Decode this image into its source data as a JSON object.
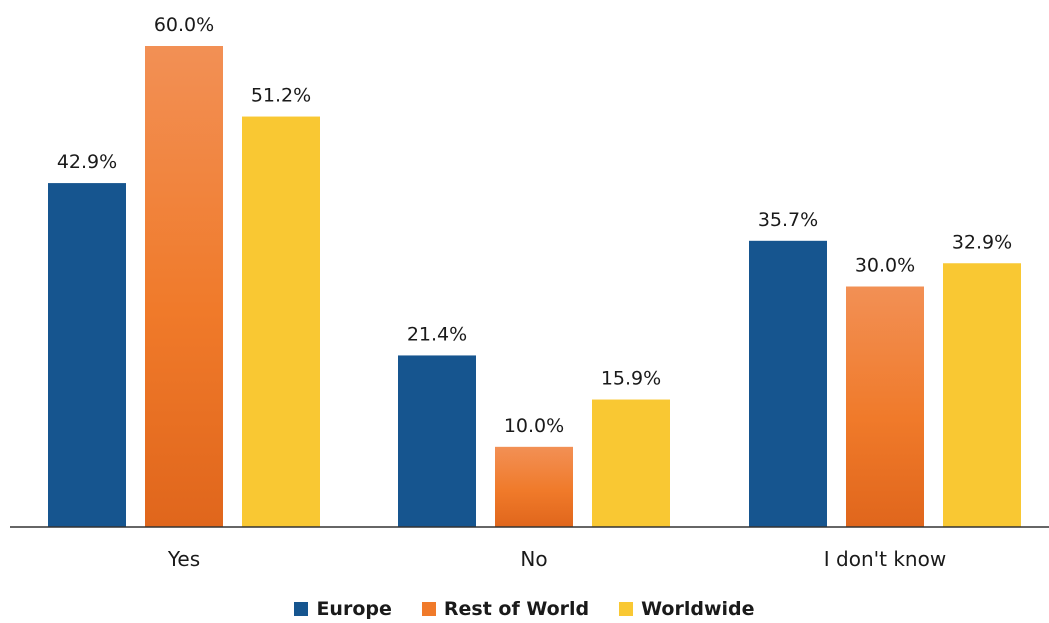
{
  "chart_data": {
    "type": "bar",
    "title": "",
    "xlabel": "",
    "ylabel": "",
    "categories": [
      "Yes",
      "No",
      "I don't know"
    ],
    "series": [
      {
        "name": "Europe",
        "values": [
          42.9,
          21.4,
          35.7
        ],
        "color": "#16558F"
      },
      {
        "name": "Rest of World",
        "values": [
          60.0,
          10.0,
          30.0
        ],
        "color": "#F07A2A"
      },
      {
        "name": "Worldwide",
        "values": [
          51.2,
          15.9,
          32.9
        ],
        "color": "#F9C833"
      }
    ],
    "value_labels": [
      [
        "42.9%",
        "21.4%",
        "35.7%"
      ],
      [
        "60.0%",
        "10.0%",
        "30.0%"
      ],
      [
        "51.2%",
        "15.9%",
        "32.9%"
      ]
    ],
    "ylim": [
      0,
      60
    ],
    "unit": "%",
    "grid": false,
    "legend": "bottom-center"
  }
}
